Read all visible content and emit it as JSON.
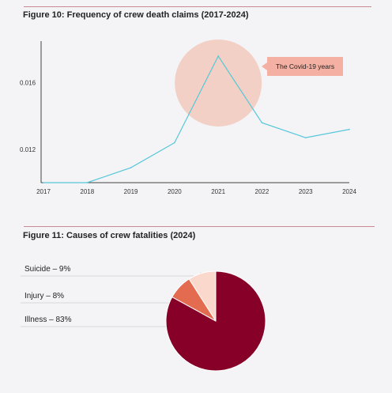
{
  "colors": {
    "rule": "#c98a95",
    "line": "#56c7d9",
    "highlight": "#f1c9bd",
    "callout_bg": "#f4b0a2",
    "illness": "#860027",
    "injury": "#e36b50",
    "suicide": "#fbd8cc"
  },
  "figures": [
    {
      "title": "Figure 10: Frequency of crew death claims (2017-2024)"
    },
    {
      "title": "Figure 11: Causes of crew fatalities (2024)"
    }
  ],
  "chart_data": [
    {
      "type": "line",
      "title": "Figure 10: Frequency of crew death claims (2017-2024)",
      "x": [
        "2017",
        "2018",
        "2019",
        "2020",
        "2021",
        "2022",
        "2023",
        "2024"
      ],
      "series": [
        {
          "values": [
            0.01,
            0.01,
            0.0109,
            0.0124,
            0.0176,
            0.0136,
            0.0127,
            0.0132
          ]
        }
      ],
      "yticks": [
        "0.012",
        "0.016"
      ],
      "ytick_values": [
        0.012,
        0.016
      ],
      "ylim": [
        0.01,
        0.0185
      ],
      "grid": false,
      "annotations": [
        {
          "x": "2021",
          "text": "The Covid-19 years"
        }
      ]
    },
    {
      "type": "pie",
      "title": "Figure 11: Causes of crew fatalities (2024)",
      "labels": [
        "Suicide – 9%",
        "Injury – 8%",
        "Illness – 83%"
      ],
      "values": [
        9,
        8,
        83
      ],
      "legend": "left"
    }
  ]
}
